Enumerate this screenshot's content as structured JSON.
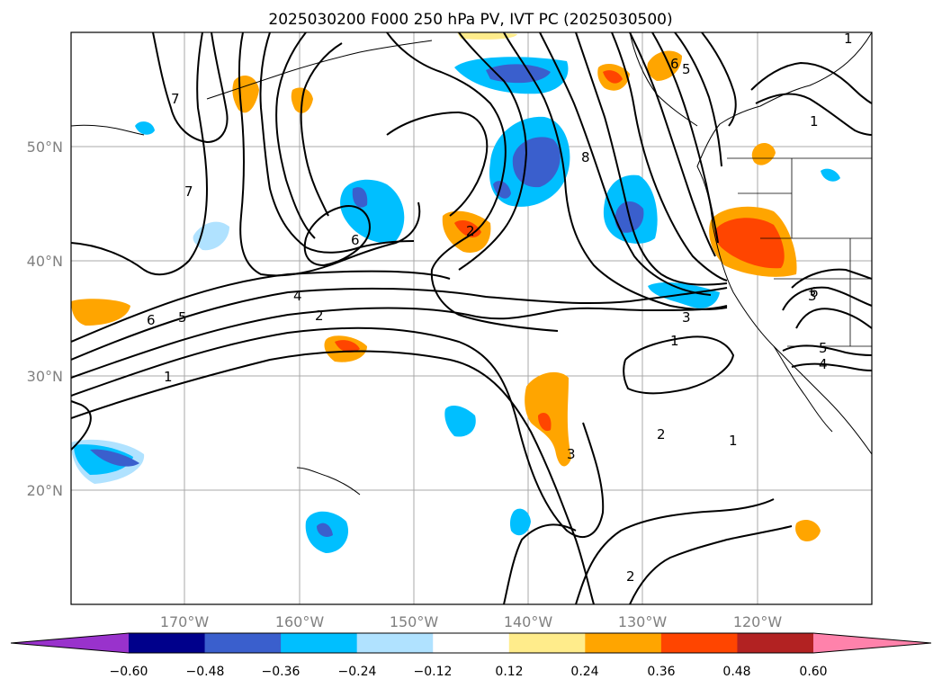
{
  "title": "2025030200 F000 250 hPa PV, IVT PC (2025030500)",
  "map": {
    "lat_ticks": [
      "50°N",
      "40°N",
      "30°N",
      "20°N"
    ],
    "lon_ticks": [
      "170°W",
      "160°W",
      "150°W",
      "140°W",
      "130°W",
      "120°W"
    ],
    "contour_labels": [
      "1",
      "1",
      "1",
      "1",
      "1",
      "2",
      "2",
      "2",
      "2",
      "3",
      "3",
      "3",
      "4",
      "4",
      "5",
      "5",
      "5",
      "6",
      "6",
      "6",
      "6",
      "7",
      "7",
      "8"
    ]
  },
  "colorbar": {
    "levels": [
      "−0.60",
      "−0.48",
      "−0.36",
      "−0.24",
      "−0.12",
      "0.12",
      "0.24",
      "0.36",
      "0.48",
      "0.60"
    ],
    "colors": [
      "#9932cc",
      "#00008b",
      "#3a5fcd",
      "#00bfff",
      "#b0e2ff",
      "#ffffff",
      "#ffec8b",
      "#ffa500",
      "#ff4500",
      "#b22222",
      "#ff82ab"
    ]
  }
}
